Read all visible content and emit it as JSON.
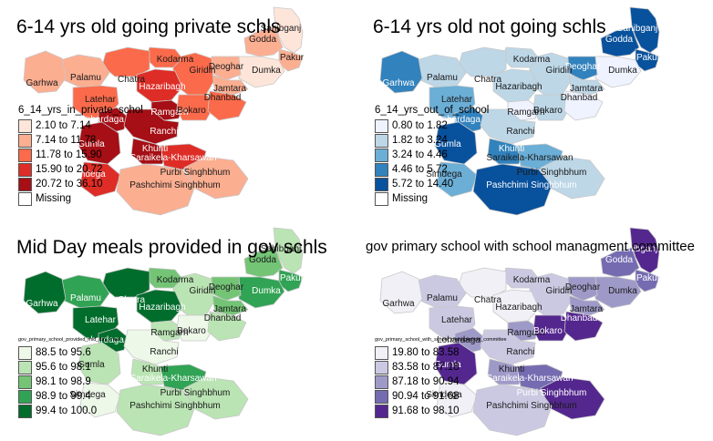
{
  "panels": [
    {
      "title": "6-14 yrs old going private schls",
      "legend_title": "6_14_yrs_in_private_schol",
      "legend": [
        "2.10 to 7.14",
        "7.14 to 11.78",
        "11.78 to 15.90",
        "15.90 to 20.72",
        "20.72 to 36.10"
      ],
      "missing": "Missing",
      "colors": [
        "#fee5d9",
        "#fcae91",
        "#fb6a4a",
        "#de2d26",
        "#a50f15"
      ],
      "class_index": {
        "sahibganj": 0,
        "godda": 1,
        "pakur": 1,
        "dumka": 0,
        "deoghar": 1,
        "jamtara": 1,
        "giridih": 2,
        "kodarma": 2,
        "hazaribagh": 3,
        "chatra": 2,
        "palamu": 1,
        "garhwa": 1,
        "latehar": 2,
        "lohardaga": 4,
        "ramgarh": 4,
        "bokaro": 2,
        "dhanbad": 2,
        "ranchi": 4,
        "gumla": 4,
        "khunti": 4,
        "simdega": 3,
        "saraikela": 3,
        "purbi": 1,
        "pashchimi": 1
      },
      "label_on_dark": true
    },
    {
      "title": "6-14 yrs old not going schls",
      "legend_title": "6_14_yrs_out_of_school",
      "legend": [
        "0.80 to 1.82",
        "1.82 to 3.24",
        "3.24 to 4.46",
        "4.46 to 5.72",
        "5.72 to 14.40"
      ],
      "missing": "Missing",
      "colors": [
        "#eff3ff",
        "#bdd7e7",
        "#6baed6",
        "#3182bd",
        "#08519c"
      ],
      "class_index": {
        "sahibganj": 4,
        "godda": 4,
        "pakur": 4,
        "dumka": 0,
        "deoghar": 3,
        "jamtara": 1,
        "giridih": 1,
        "kodarma": 1,
        "hazaribagh": 1,
        "chatra": 1,
        "palamu": 1,
        "garhwa": 3,
        "latehar": 2,
        "lohardaga": 3,
        "ramgarh": 0,
        "bokaro": 1,
        "dhanbad": 0,
        "ranchi": 1,
        "gumla": 4,
        "khunti": 3,
        "simdega": 2,
        "saraikela": 2,
        "purbi": 1,
        "pashchimi": 4
      },
      "label_on_dark": true
    },
    {
      "title": "Mid Day meals provided in gov schls",
      "legend_title": "gov_primary_school_provided_mid_day_meal",
      "legend": [
        "88.5 to 95.6",
        "95.6 to 98.1",
        "98.1 to 98.9",
        "98.9 to 99.4",
        "99.4 to 100.0"
      ],
      "missing": "",
      "colors": [
        "#edf8e9",
        "#bae4b3",
        "#74c476",
        "#31a354",
        "#006d2c"
      ],
      "class_index": {
        "sahibganj": 1,
        "godda": 2,
        "pakur": 3,
        "dumka": 3,
        "deoghar": 2,
        "jamtara": 2,
        "giridih": 1,
        "kodarma": 2,
        "hazaribagh": 4,
        "chatra": 4,
        "palamu": 3,
        "garhwa": 4,
        "latehar": 4,
        "lohardaga": 4,
        "ramgarh": 1,
        "bokaro": 0,
        "dhanbad": 1,
        "ranchi": 0,
        "gumla": 1,
        "khunti": 1,
        "simdega": 0,
        "saraikela": 3,
        "purbi": 1,
        "pashchimi": 1
      },
      "label_on_dark": true
    },
    {
      "title": "gov primary school with school managment committee",
      "legend_title": "gov_primary_school_with_school_management_committee",
      "legend": [
        "19.80 to 83.58",
        "83.58 to 87.18",
        "87.18 to 90.94",
        "90.94 to 91.68",
        "91.68 to 98.10"
      ],
      "missing": "",
      "colors": [
        "#f2f0f7",
        "#cbc9e2",
        "#9e9ac8",
        "#756bb1",
        "#54278f"
      ],
      "class_index": {
        "sahibganj": 4,
        "godda": 3,
        "pakur": 3,
        "dumka": 2,
        "deoghar": 2,
        "jamtara": 2,
        "giridih": 1,
        "kodarma": 1,
        "hazaribagh": 0,
        "chatra": 0,
        "palamu": 1,
        "garhwa": 0,
        "latehar": 1,
        "lohardaga": 2,
        "ramgarh": 2,
        "bokaro": 4,
        "dhanbad": 4,
        "ranchi": 1,
        "gumla": 4,
        "khunti": 2,
        "simdega": 0,
        "saraikela": 3,
        "purbi": 4,
        "pashchimi": 1
      },
      "label_on_dark": true
    }
  ],
  "district_names": {
    "sahibganj": "Sahibganj",
    "godda": "Godda",
    "pakur": "Pakur",
    "dumka": "Dumka",
    "deoghar": "Deoghar",
    "jamtara": "Jamtara",
    "giridih": "Giridih",
    "kodarma": "Kodarma",
    "hazaribagh": "Hazaribagh",
    "chatra": "Chatra",
    "palamu": "Palamu",
    "garhwa": "Garhwa",
    "latehar": "Latehar",
    "lohardaga": "Lohardaga",
    "ramgarh": "Ramgarh",
    "bokaro": "Bokaro",
    "dhanbad": "Dhanbad",
    "ranchi": "Ranchi",
    "gumla": "Gumla",
    "khunti": "Khunti",
    "simdega": "Simdega",
    "saraikela": "Saraikela-Kharsawan",
    "purbi": "Purbi Singhbhum",
    "pashchimi": "Pashchimi Singhbhum"
  }
}
